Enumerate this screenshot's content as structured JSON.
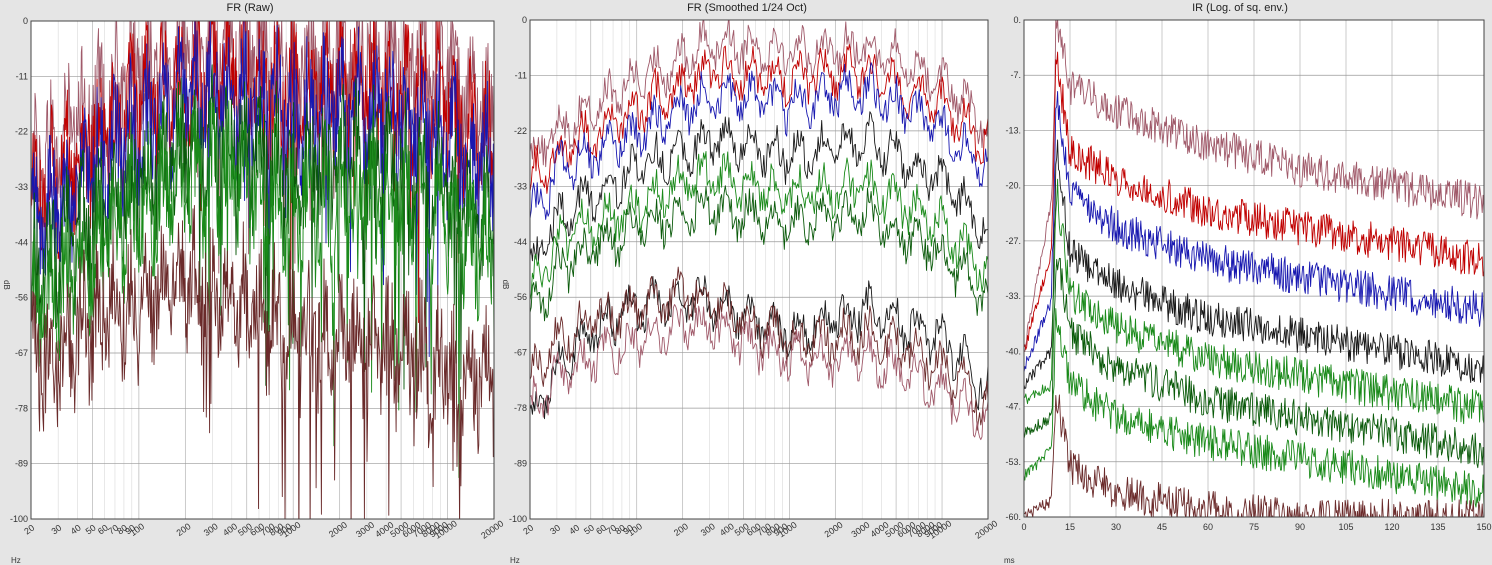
{
  "chart_data": [
    {
      "type": "line",
      "title": "FR (Raw)",
      "xlabel": "Hz",
      "ylabel": "dB",
      "xscale": "log",
      "xlim": [
        20,
        20000
      ],
      "ylim": [
        -100,
        0
      ],
      "grid": true,
      "x_ticks": [
        20,
        30,
        40,
        50,
        60,
        70,
        80,
        90,
        100,
        200,
        300,
        400,
        500,
        600,
        700,
        800,
        900,
        1000,
        2000,
        3000,
        4000,
        5000,
        6000,
        7000,
        8000,
        9000,
        10000,
        20000
      ],
      "y_ticks": [
        "0",
        "-11",
        "-22",
        "-33",
        "-44",
        "-56",
        "-67",
        "-78",
        "-89",
        "-100"
      ],
      "series": [
        {
          "color": "#a05a6a",
          "x": [
            20,
            50,
            100,
            200,
            300,
            500,
            1000,
            2000,
            3000,
            5000,
            10000,
            20000
          ],
          "y": [
            -30,
            -18,
            -10,
            -6,
            -4,
            -6,
            -8,
            -6,
            -6,
            -7,
            -10,
            -20
          ]
        },
        {
          "color": "#c00000",
          "x": [
            20,
            50,
            100,
            200,
            300,
            500,
            1000,
            2000,
            3000,
            5000,
            10000,
            20000
          ],
          "y": [
            -36,
            -25,
            -17,
            -12,
            -10,
            -12,
            -15,
            -13,
            -13,
            -14,
            -17,
            -25
          ]
        },
        {
          "color": "#1818b0",
          "x": [
            20,
            50,
            100,
            200,
            300,
            500,
            1000,
            2000,
            3000,
            5000,
            10000,
            20000
          ],
          "y": [
            -42,
            -30,
            -22,
            -16,
            -14,
            -16,
            -19,
            -17,
            -17,
            -19,
            -23,
            -30
          ]
        },
        {
          "color": "#0a5a0a",
          "x": [
            20,
            50,
            100,
            200,
            300,
            500,
            1000,
            2000,
            3000,
            5000,
            10000,
            20000
          ],
          "y": [
            -52,
            -40,
            -32,
            -26,
            -24,
            -27,
            -31,
            -28,
            -28,
            -30,
            -34,
            -42
          ]
        },
        {
          "color": "#1a8a1a",
          "x": [
            20,
            50,
            100,
            200,
            300,
            500,
            1000,
            2000,
            3000,
            5000,
            10000,
            20000
          ],
          "y": [
            -58,
            -46,
            -38,
            -32,
            -30,
            -33,
            -37,
            -34,
            -35,
            -37,
            -40,
            -48
          ]
        },
        {
          "color": "#6a2a2a",
          "x": [
            20,
            50,
            100,
            200,
            300,
            500,
            1000,
            2000,
            3000,
            5000,
            10000,
            20000
          ],
          "y": [
            -70,
            -60,
            -56,
            -52,
            -54,
            -58,
            -62,
            -64,
            -64,
            -66,
            -68,
            -74
          ]
        }
      ]
    },
    {
      "type": "line",
      "title": "FR (Smoothed 1/24 Oct)",
      "xlabel": "Hz",
      "ylabel": "dB",
      "xscale": "log",
      "xlim": [
        20,
        20000
      ],
      "ylim": [
        -100,
        0
      ],
      "grid": true,
      "x_ticks": [
        20,
        30,
        40,
        50,
        60,
        70,
        80,
        90,
        100,
        200,
        300,
        400,
        500,
        600,
        700,
        800,
        900,
        1000,
        2000,
        3000,
        4000,
        5000,
        6000,
        7000,
        8000,
        9000,
        10000,
        20000
      ],
      "y_ticks": [
        "0",
        "-11",
        "-22",
        "-33",
        "-44",
        "-56",
        "-67",
        "-78",
        "-89",
        "-100"
      ],
      "series": [
        {
          "color": "#a05a6a",
          "x": [
            20,
            30,
            50,
            100,
            200,
            300,
            500,
            1000,
            2000,
            3000,
            5000,
            10000,
            20000
          ],
          "y": [
            -28,
            -22,
            -18,
            -12,
            -8,
            -4,
            -5,
            -6,
            -6,
            -5,
            -8,
            -12,
            -22
          ]
        },
        {
          "color": "#c00000",
          "x": [
            20,
            30,
            50,
            100,
            200,
            300,
            500,
            1000,
            2000,
            3000,
            5000,
            10000,
            20000
          ],
          "y": [
            -32,
            -27,
            -23,
            -18,
            -13,
            -10,
            -11,
            -12,
            -11,
            -10,
            -13,
            -17,
            -25
          ]
        },
        {
          "color": "#1818b0",
          "x": [
            20,
            30,
            50,
            100,
            200,
            300,
            500,
            1000,
            2000,
            3000,
            5000,
            10000,
            20000
          ],
          "y": [
            -40,
            -30,
            -27,
            -23,
            -18,
            -15,
            -16,
            -17,
            -15,
            -14,
            -17,
            -22,
            -30
          ]
        },
        {
          "color": "#1a1a1a",
          "x": [
            20,
            30,
            50,
            100,
            200,
            300,
            500,
            1000,
            2000,
            3000,
            5000,
            10000,
            20000
          ],
          "y": [
            -50,
            -40,
            -35,
            -30,
            -26,
            -24,
            -25,
            -27,
            -26,
            -24,
            -27,
            -32,
            -42
          ]
        },
        {
          "color": "#1a8a1a",
          "x": [
            20,
            30,
            50,
            100,
            200,
            300,
            500,
            1000,
            2000,
            3000,
            5000,
            10000,
            20000
          ],
          "y": [
            -55,
            -45,
            -41,
            -37,
            -33,
            -31,
            -33,
            -35,
            -34,
            -33,
            -36,
            -41,
            -52
          ]
        },
        {
          "color": "#0a5a0a",
          "x": [
            20,
            30,
            50,
            100,
            200,
            300,
            500,
            1000,
            2000,
            3000,
            5000,
            10000,
            20000
          ],
          "y": [
            -60,
            -50,
            -46,
            -42,
            -39,
            -37,
            -39,
            -41,
            -40,
            -39,
            -42,
            -47,
            -56
          ]
        },
        {
          "color": "#1a1a1a",
          "x": [
            20,
            30,
            50,
            100,
            200,
            300,
            500,
            1000,
            2000,
            3000,
            5000,
            10000,
            20000
          ],
          "y": [
            -82,
            -70,
            -62,
            -58,
            -56,
            -56,
            -59,
            -62,
            -60,
            -58,
            -60,
            -64,
            -74
          ]
        },
        {
          "color": "#6a2a2a",
          "x": [
            20,
            30,
            50,
            100,
            200,
            300,
            500,
            1000,
            2000,
            3000,
            5000,
            10000,
            20000
          ],
          "y": [
            -72,
            -64,
            -60,
            -58,
            -55,
            -56,
            -60,
            -64,
            -64,
            -63,
            -65,
            -69,
            -78
          ]
        },
        {
          "color": "#a05a6a",
          "x": [
            20,
            30,
            50,
            100,
            200,
            300,
            500,
            1000,
            2000,
            3000,
            5000,
            10000,
            20000
          ],
          "y": [
            -78,
            -72,
            -68,
            -64,
            -61,
            -61,
            -64,
            -68,
            -68,
            -67,
            -70,
            -74,
            -82
          ]
        }
      ]
    },
    {
      "type": "line",
      "title": "IR (Log. of sq. env.)",
      "xlabel": "ms",
      "ylabel": "",
      "xlim": [
        0,
        150
      ],
      "ylim": [
        -60,
        0
      ],
      "grid": true,
      "x_ticks": [
        "0",
        "15",
        "30",
        "45",
        "60",
        "75",
        "90",
        "105",
        "120",
        "135",
        "150"
      ],
      "y_ticks": [
        "0.",
        "-7.",
        "-13.",
        "-20.",
        "-27.",
        "-33.",
        "-40.",
        "-47.",
        "-53.",
        "-60."
      ],
      "series": [
        {
          "color": "#a05a6a",
          "x": [
            0,
            9,
            10.5,
            15,
            30,
            60,
            90,
            120,
            150
          ],
          "y": [
            -40,
            -22,
            0,
            -8,
            -11,
            -15,
            -18,
            -20,
            -22
          ]
        },
        {
          "color": "#c00000",
          "x": [
            0,
            9,
            10.5,
            15,
            30,
            60,
            90,
            120,
            150
          ],
          "y": [
            -40,
            -28,
            -4,
            -16,
            -19,
            -23,
            -25,
            -27,
            -29
          ]
        },
        {
          "color": "#1818b0",
          "x": [
            0,
            9,
            10.5,
            15,
            30,
            60,
            90,
            120,
            150
          ],
          "y": [
            -42,
            -34,
            -9,
            -21,
            -25,
            -29,
            -31,
            -33,
            -35
          ]
        },
        {
          "color": "#1a1a1a",
          "x": [
            0,
            9,
            10.5,
            15,
            30,
            60,
            90,
            120,
            150
          ],
          "y": [
            -44,
            -40,
            -15,
            -28,
            -32,
            -36,
            -38,
            -40,
            -42
          ]
        },
        {
          "color": "#1a8a1a",
          "x": [
            0,
            9,
            10.5,
            15,
            30,
            60,
            90,
            120,
            150
          ],
          "y": [
            -46,
            -44,
            -20,
            -33,
            -37,
            -41,
            -43,
            -45,
            -47
          ]
        },
        {
          "color": "#0a5a0a",
          "x": [
            0,
            9,
            10.5,
            15,
            30,
            60,
            90,
            120,
            150
          ],
          "y": [
            -50,
            -48,
            -27,
            -38,
            -42,
            -46,
            -48,
            -50,
            -52
          ]
        },
        {
          "color": "#1a8a1a",
          "x": [
            0,
            9,
            10.5,
            15,
            30,
            60,
            90,
            120,
            150
          ],
          "y": [
            -55,
            -52,
            -35,
            -44,
            -48,
            -51,
            -53,
            -55,
            -57
          ]
        },
        {
          "color": "#6a2a2a",
          "x": [
            0,
            9,
            10.5,
            15,
            30,
            60,
            90,
            120,
            150
          ],
          "y": [
            -60,
            -58,
            -45,
            -54,
            -57,
            -59,
            -60,
            -60,
            -60
          ]
        }
      ]
    }
  ]
}
